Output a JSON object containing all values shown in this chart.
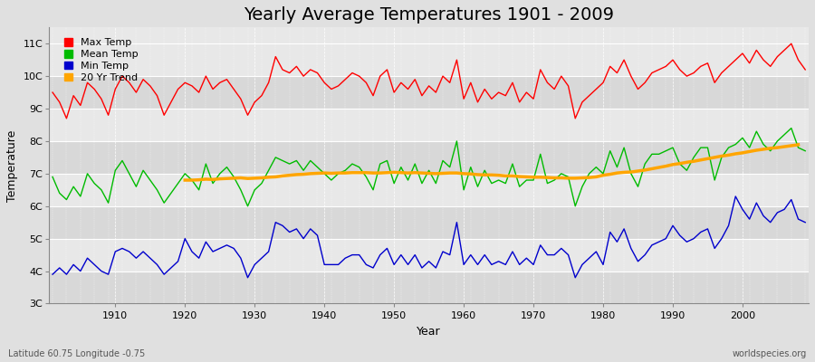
{
  "title": "Yearly Average Temperatures 1901 - 2009",
  "xlabel": "Year",
  "ylabel": "Temperature",
  "lat_lon_label": "Latitude 60.75 Longitude -0.75",
  "watermark": "worldspecies.org",
  "years": [
    1901,
    1902,
    1903,
    1904,
    1905,
    1906,
    1907,
    1908,
    1909,
    1910,
    1911,
    1912,
    1913,
    1914,
    1915,
    1916,
    1917,
    1918,
    1919,
    1920,
    1921,
    1922,
    1923,
    1924,
    1925,
    1926,
    1927,
    1928,
    1929,
    1930,
    1931,
    1932,
    1933,
    1934,
    1935,
    1936,
    1937,
    1938,
    1939,
    1940,
    1941,
    1942,
    1943,
    1944,
    1945,
    1946,
    1947,
    1948,
    1949,
    1950,
    1951,
    1952,
    1953,
    1954,
    1955,
    1956,
    1957,
    1958,
    1959,
    1960,
    1961,
    1962,
    1963,
    1964,
    1965,
    1966,
    1967,
    1968,
    1969,
    1970,
    1971,
    1972,
    1973,
    1974,
    1975,
    1976,
    1977,
    1978,
    1979,
    1980,
    1981,
    1982,
    1983,
    1984,
    1985,
    1986,
    1987,
    1988,
    1989,
    1990,
    1991,
    1992,
    1993,
    1994,
    1995,
    1996,
    1997,
    1998,
    1999,
    2000,
    2001,
    2002,
    2003,
    2004,
    2005,
    2006,
    2007,
    2008,
    2009
  ],
  "max_temp": [
    9.5,
    9.2,
    8.7,
    9.4,
    9.1,
    9.8,
    9.6,
    9.3,
    8.8,
    9.6,
    10.0,
    9.8,
    9.5,
    9.9,
    9.7,
    9.4,
    8.8,
    9.2,
    9.6,
    9.8,
    9.7,
    9.5,
    10.0,
    9.6,
    9.8,
    9.9,
    9.6,
    9.3,
    8.8,
    9.2,
    9.4,
    9.8,
    10.6,
    10.2,
    10.1,
    10.3,
    10.0,
    10.2,
    10.1,
    9.8,
    9.6,
    9.7,
    9.9,
    10.1,
    10.0,
    9.8,
    9.4,
    10.0,
    10.2,
    9.5,
    9.8,
    9.6,
    9.9,
    9.4,
    9.7,
    9.5,
    10.0,
    9.8,
    10.5,
    9.3,
    9.8,
    9.2,
    9.6,
    9.3,
    9.5,
    9.4,
    9.8,
    9.2,
    9.5,
    9.3,
    10.2,
    9.8,
    9.6,
    10.0,
    9.7,
    8.7,
    9.2,
    9.4,
    9.6,
    9.8,
    10.3,
    10.1,
    10.5,
    10.0,
    9.6,
    9.8,
    10.1,
    10.2,
    10.3,
    10.5,
    10.2,
    10.0,
    10.1,
    10.3,
    10.4,
    9.8,
    10.1,
    10.3,
    10.5,
    10.7,
    10.4,
    10.8,
    10.5,
    10.3,
    10.6,
    10.8,
    11.0,
    10.5,
    10.2
  ],
  "mean_temp": [
    6.9,
    6.4,
    6.2,
    6.6,
    6.3,
    7.0,
    6.7,
    6.5,
    6.1,
    7.1,
    7.4,
    7.0,
    6.6,
    7.1,
    6.8,
    6.5,
    6.1,
    6.4,
    6.7,
    7.0,
    6.8,
    6.5,
    7.3,
    6.7,
    7.0,
    7.2,
    6.9,
    6.5,
    6.0,
    6.5,
    6.7,
    7.1,
    7.5,
    7.4,
    7.3,
    7.4,
    7.1,
    7.4,
    7.2,
    7.0,
    6.8,
    7.0,
    7.1,
    7.3,
    7.2,
    6.9,
    6.5,
    7.3,
    7.4,
    6.7,
    7.2,
    6.8,
    7.3,
    6.7,
    7.1,
    6.7,
    7.4,
    7.2,
    8.0,
    6.5,
    7.2,
    6.6,
    7.1,
    6.7,
    6.8,
    6.7,
    7.3,
    6.6,
    6.8,
    6.8,
    7.6,
    6.7,
    6.8,
    7.0,
    6.9,
    6.0,
    6.6,
    7.0,
    7.2,
    7.0,
    7.7,
    7.2,
    7.8,
    7.0,
    6.6,
    7.3,
    7.6,
    7.6,
    7.7,
    7.8,
    7.3,
    7.1,
    7.5,
    7.8,
    7.8,
    6.8,
    7.5,
    7.8,
    7.9,
    8.1,
    7.8,
    8.3,
    7.9,
    7.7,
    8.0,
    8.2,
    8.4,
    7.8,
    7.7
  ],
  "trend_20yr": [
    null,
    null,
    null,
    null,
    null,
    null,
    null,
    null,
    null,
    null,
    null,
    null,
    null,
    null,
    null,
    null,
    null,
    null,
    null,
    6.8,
    6.8,
    6.81,
    6.83,
    6.82,
    6.84,
    6.85,
    6.86,
    6.87,
    6.85,
    6.86,
    6.87,
    6.89,
    6.9,
    6.93,
    6.95,
    6.97,
    6.98,
    7.0,
    7.01,
    7.02,
    7.01,
    7.02,
    7.02,
    7.03,
    7.03,
    7.03,
    7.02,
    7.02,
    7.03,
    7.04,
    7.03,
    7.02,
    7.03,
    7.02,
    7.01,
    7.0,
    7.01,
    7.02,
    7.02,
    7.0,
    6.99,
    6.97,
    6.96,
    6.96,
    6.95,
    6.93,
    6.93,
    6.91,
    6.9,
    6.89,
    6.89,
    6.88,
    6.87,
    6.87,
    6.86,
    6.86,
    6.87,
    6.88,
    6.9,
    6.95,
    6.98,
    7.02,
    7.04,
    7.05,
    7.08,
    7.11,
    7.15,
    7.19,
    7.23,
    7.28,
    7.31,
    7.35,
    7.38,
    7.42,
    7.46,
    7.5,
    7.54,
    7.57,
    7.61,
    7.64,
    7.68,
    7.72,
    7.75,
    7.78,
    7.8,
    7.83,
    7.86,
    7.89
  ],
  "min_temp": [
    3.9,
    4.1,
    3.9,
    4.2,
    4.0,
    4.4,
    4.2,
    4.0,
    3.9,
    4.6,
    4.7,
    4.6,
    4.4,
    4.6,
    4.4,
    4.2,
    3.9,
    4.1,
    4.3,
    5.0,
    4.6,
    4.4,
    4.9,
    4.6,
    4.7,
    4.8,
    4.7,
    4.4,
    3.8,
    4.2,
    4.4,
    4.6,
    5.5,
    5.4,
    5.2,
    5.3,
    5.0,
    5.3,
    5.1,
    4.2,
    4.2,
    4.2,
    4.4,
    4.5,
    4.5,
    4.2,
    4.1,
    4.5,
    4.7,
    4.2,
    4.5,
    4.2,
    4.5,
    4.1,
    4.3,
    4.1,
    4.6,
    4.5,
    5.5,
    4.2,
    4.5,
    4.2,
    4.5,
    4.2,
    4.3,
    4.2,
    4.6,
    4.2,
    4.4,
    4.2,
    4.8,
    4.5,
    4.5,
    4.7,
    4.5,
    3.8,
    4.2,
    4.4,
    4.6,
    4.2,
    5.2,
    4.9,
    5.3,
    4.7,
    4.3,
    4.5,
    4.8,
    4.9,
    5.0,
    5.4,
    5.1,
    4.9,
    5.0,
    5.2,
    5.3,
    4.7,
    5.0,
    5.4,
    6.3,
    5.9,
    5.6,
    6.1,
    5.7,
    5.5,
    5.8,
    5.9,
    6.2,
    5.6,
    5.5
  ],
  "max_color": "#ff0000",
  "mean_color": "#00bb00",
  "min_color": "#0000cc",
  "trend_color": "#ffa500",
  "bg_color": "#e0e0e0",
  "plot_bg_color_light": "#e8e8e8",
  "plot_bg_color_dark": "#d8d8d8",
  "grid_color": "#ffffff",
  "ylim": [
    3.0,
    11.5
  ],
  "yticks": [
    3,
    4,
    5,
    6,
    7,
    8,
    9,
    10,
    11
  ],
  "ytick_labels": [
    "3C",
    "4C",
    "5C",
    "6C",
    "7C",
    "8C",
    "9C",
    "10C",
    "11C"
  ],
  "xticks": [
    1910,
    1920,
    1930,
    1940,
    1950,
    1960,
    1970,
    1980,
    1990,
    2000
  ],
  "title_fontsize": 14,
  "label_fontsize": 9,
  "tick_fontsize": 8,
  "legend_fontsize": 8,
  "linewidth": 1.0,
  "trend_linewidth": 2.5
}
